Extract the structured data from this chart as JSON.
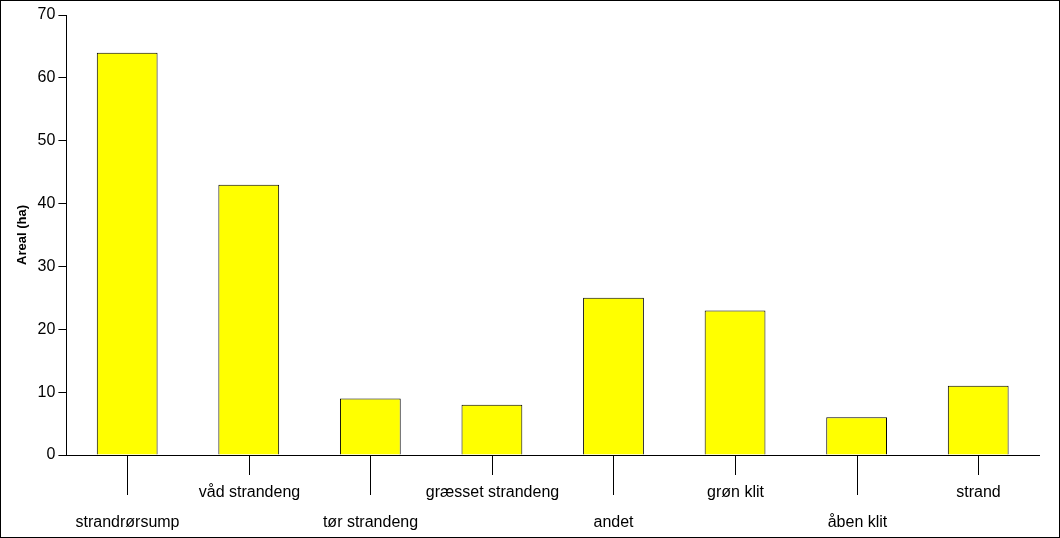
{
  "chart_data": {
    "type": "bar",
    "ylabel": "Areal (ha)",
    "categories": [
      "strandrørsump",
      "våd strandeng",
      "tør strandeng",
      "græsset strandeng",
      "andet",
      "grøn klit",
      "åben klit",
      "strand"
    ],
    "values": [
      64,
      43,
      9,
      8,
      25,
      23,
      6,
      11
    ],
    "color": "#ffff00",
    "ylim": [
      0,
      70
    ],
    "yticks": [
      0,
      10,
      20,
      30,
      40,
      50,
      60,
      70
    ],
    "grid": false
  }
}
